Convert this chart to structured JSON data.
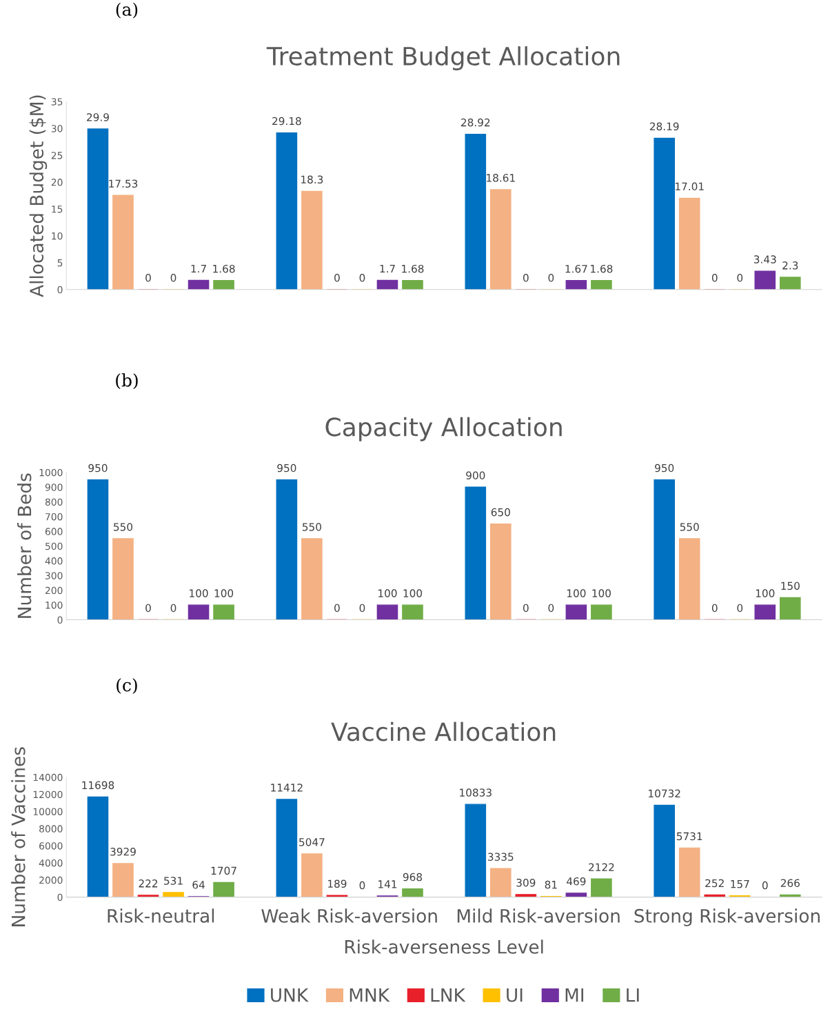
{
  "chart_data": [
    {
      "type": "bar",
      "title": "Treatment Budget Allocation",
      "ylabel": "Allocated Budget ($M)",
      "annotations": [
        "(a)"
      ],
      "categories": [
        null,
        null,
        null,
        null
      ],
      "ylim": [
        0,
        35
      ],
      "yticks": [
        0,
        5,
        10,
        15,
        20,
        25,
        30,
        35
      ],
      "tick_labels": "y",
      "data_labels": true,
      "grid": false,
      "legend": false,
      "series": [
        {
          "color": "#0070c0",
          "values": [
            29.9,
            29.18,
            28.92,
            28.19
          ]
        },
        {
          "color": "#f4b183",
          "values": [
            17.53,
            18.3,
            18.61,
            17.01
          ]
        },
        {
          "color": "#e8202a",
          "values": [
            0,
            0,
            0,
            0
          ]
        },
        {
          "color": "#ffc000",
          "values": [
            0,
            0,
            0,
            0
          ]
        },
        {
          "color": "#7030a0",
          "values": [
            1.7,
            1.7,
            1.67,
            3.43
          ]
        },
        {
          "color": "#70ad47",
          "values": [
            1.68,
            1.68,
            1.68,
            2.3
          ]
        }
      ]
    },
    {
      "type": "bar",
      "title": "Capacity Allocation",
      "ylabel": "Number of Beds",
      "annotations": [
        "(b)"
      ],
      "categories": [
        null,
        null,
        null,
        null
      ],
      "ylim": [
        0,
        1000
      ],
      "yticks": [
        0,
        100,
        200,
        300,
        400,
        500,
        600,
        700,
        800,
        900,
        1000
      ],
      "tick_labels": "y",
      "data_labels": true,
      "grid": false,
      "legend": false,
      "series": [
        {
          "color": "#0070c0",
          "values": [
            950,
            950,
            900,
            950
          ]
        },
        {
          "color": "#f4b183",
          "values": [
            550,
            550,
            650,
            550
          ]
        },
        {
          "color": "#e8202a",
          "values": [
            0,
            0,
            0,
            0
          ]
        },
        {
          "color": "#ffc000",
          "values": [
            0,
            0,
            0,
            0
          ]
        },
        {
          "color": "#7030a0",
          "values": [
            100,
            100,
            100,
            100
          ]
        },
        {
          "color": "#70ad47",
          "values": [
            100,
            100,
            100,
            150
          ]
        }
      ]
    },
    {
      "type": "bar",
      "title": "Vaccine Allocation",
      "ylabel": "Number of Vaccines",
      "xlabel": "Risk-averseness Level",
      "annotations": [
        "(c)"
      ],
      "categories": [
        "Risk-neutral",
        "Weak Risk-aversion",
        "Mild Risk-aversion",
        "Strong Risk-aversion"
      ],
      "ylim": [
        0,
        14000
      ],
      "yticks": [
        0,
        2000,
        4000,
        6000,
        8000,
        10000,
        12000,
        14000
      ],
      "data_labels": true,
      "grid": false,
      "legend": "bottom",
      "series": [
        {
          "name": "UNK",
          "color": "#0070c0",
          "values": [
            11698,
            11412,
            10833,
            10732
          ]
        },
        {
          "name": "MNK",
          "color": "#f4b183",
          "values": [
            3929,
            5047,
            3335,
            5731
          ]
        },
        {
          "name": "LNK",
          "color": "#e8202a",
          "values": [
            222,
            189,
            309,
            252
          ]
        },
        {
          "name": "UI",
          "color": "#ffc000",
          "values": [
            531,
            0,
            81,
            157
          ]
        },
        {
          "name": "MI",
          "color": "#7030a0",
          "values": [
            64,
            141,
            469,
            0
          ]
        },
        {
          "name": "LI",
          "color": "#70ad47",
          "values": [
            1707,
            968,
            2122,
            266
          ]
        }
      ]
    }
  ]
}
